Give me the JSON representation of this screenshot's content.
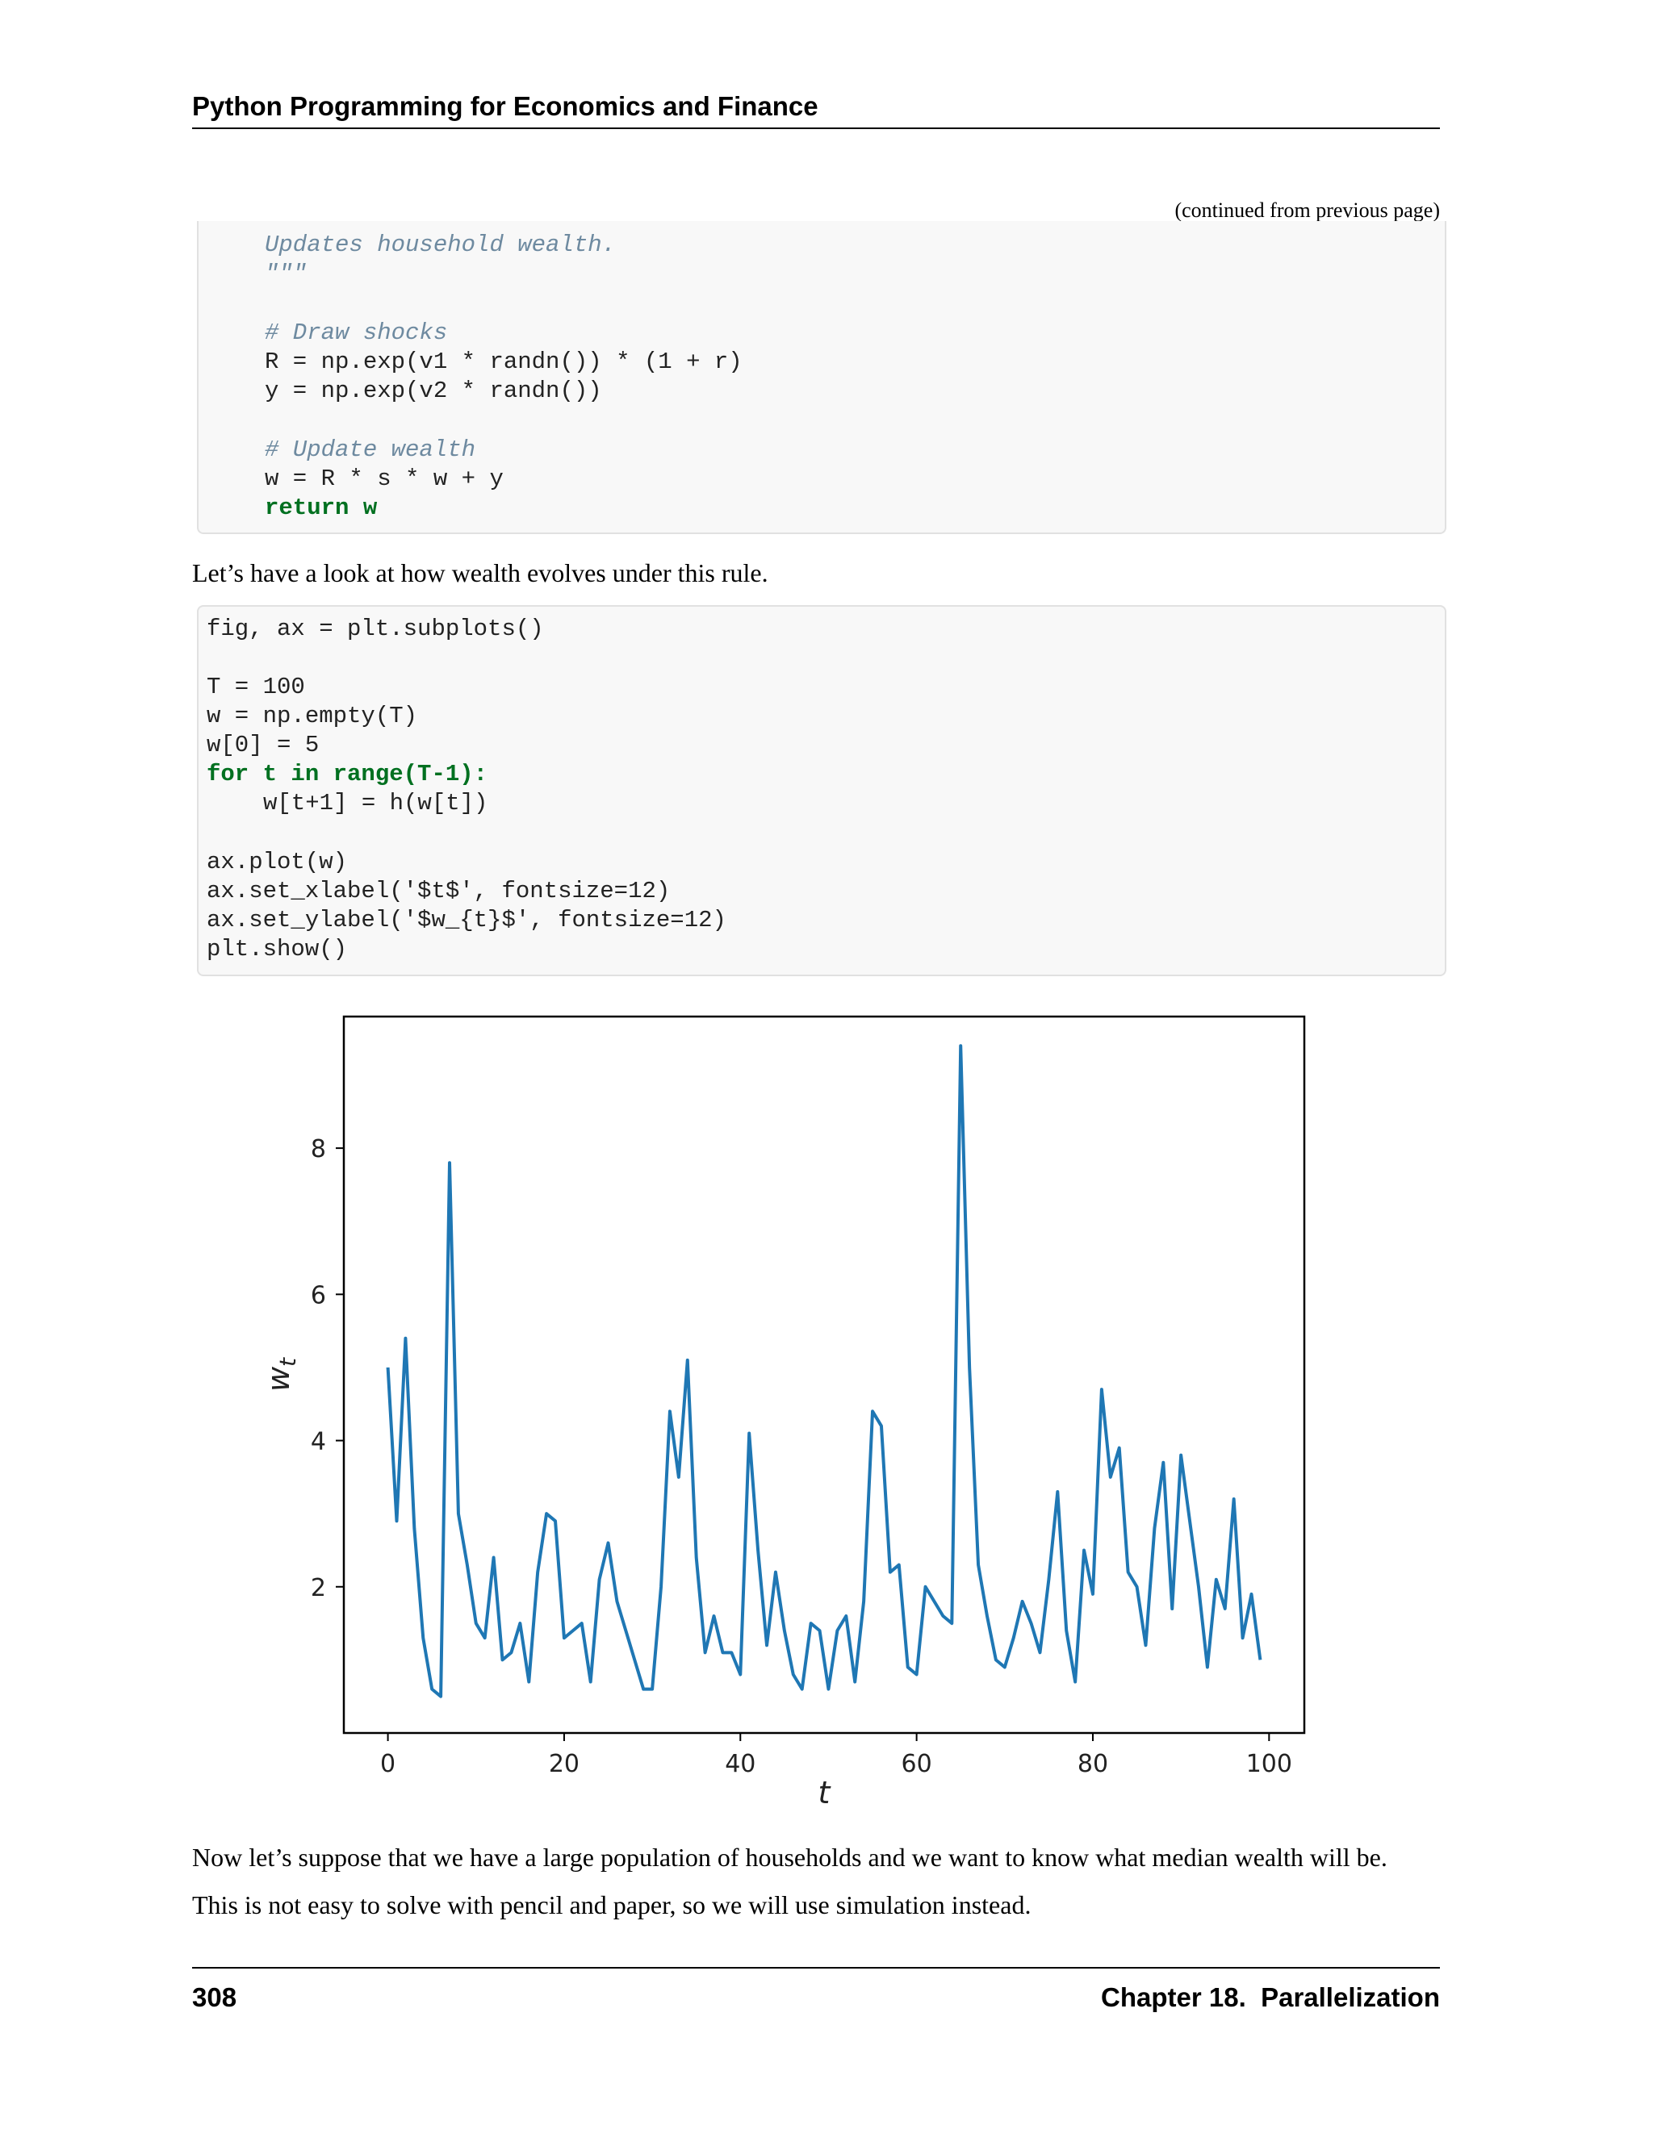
{
  "header": {
    "title": "Python Programming for Economics and Finance"
  },
  "continued_note": "(continued from previous page)",
  "code_block_1": {
    "line1": "Updates household wealth.",
    "line2": "\"\"\"",
    "line3": "# Draw shocks",
    "line4": "R = np.exp(v1 * randn()) * (1 + r)",
    "line5": "y = np.exp(v2 * randn())",
    "line6": "# Update wealth",
    "line7": "w = R * s * w + y",
    "line8": "return w"
  },
  "paragraph_1": "Let’s have a look at how wealth evolves under this rule.",
  "code_block_2": {
    "line1": "fig, ax = plt.subplots()",
    "line2": "T = 100",
    "line3": "w = np.empty(T)",
    "line4": "w[0] = 5",
    "line5": "for t in range(T-1):",
    "line6": "w[t+1] = h(w[t])",
    "line7": "ax.plot(w)",
    "line8": "ax.set_xlabel('$t$', fontsize=12)",
    "line9": "ax.set_ylabel('$w_{t}$', fontsize=12)",
    "line10": "plt.show()"
  },
  "chart_data": {
    "type": "line",
    "xlabel": "t",
    "ylabel": "w_t",
    "xlim": [
      -5,
      104
    ],
    "ylim": [
      0,
      9.8
    ],
    "xticks": [
      0,
      20,
      40,
      60,
      80,
      100
    ],
    "yticks": [
      2,
      4,
      6,
      8
    ],
    "grid": false,
    "series": [
      {
        "color": "#1f77b4",
        "values": [
          5.0,
          2.9,
          5.4,
          2.8,
          1.3,
          0.6,
          0.5,
          7.8,
          3.0,
          2.3,
          1.5,
          1.3,
          2.4,
          1.0,
          1.1,
          1.5,
          0.7,
          2.2,
          3.0,
          2.9,
          1.3,
          1.4,
          1.5,
          0.7,
          2.1,
          2.6,
          1.8,
          1.4,
          1.0,
          0.6,
          0.6,
          2.0,
          4.4,
          3.5,
          5.1,
          2.4,
          1.1,
          1.6,
          1.1,
          1.1,
          0.8,
          4.1,
          2.5,
          1.2,
          2.2,
          1.4,
          0.8,
          0.6,
          1.5,
          1.4,
          0.6,
          1.4,
          1.6,
          0.7,
          1.8,
          4.4,
          4.2,
          2.2,
          2.3,
          0.9,
          0.8,
          2.0,
          1.8,
          1.6,
          1.5,
          9.4,
          5.0,
          2.3,
          1.6,
          1.0,
          0.9,
          1.3,
          1.8,
          1.5,
          1.1,
          2.1,
          3.3,
          1.4,
          0.7,
          2.5,
          1.9,
          4.7,
          3.5,
          3.9,
          2.2,
          2.0,
          1.2,
          2.8,
          3.7,
          1.7,
          3.8,
          2.9,
          2.0,
          0.9,
          2.1,
          1.7,
          3.2,
          1.3,
          1.9,
          1.0
        ]
      }
    ]
  },
  "paragraph_2": "Now let’s suppose that we have a large population of households and we want to know what median wealth will be.",
  "paragraph_3": "This is not easy to solve with pencil and paper, so we will use simulation instead.",
  "footer": {
    "page_number": "308",
    "chapter": "Chapter 18.  Parallelization"
  }
}
